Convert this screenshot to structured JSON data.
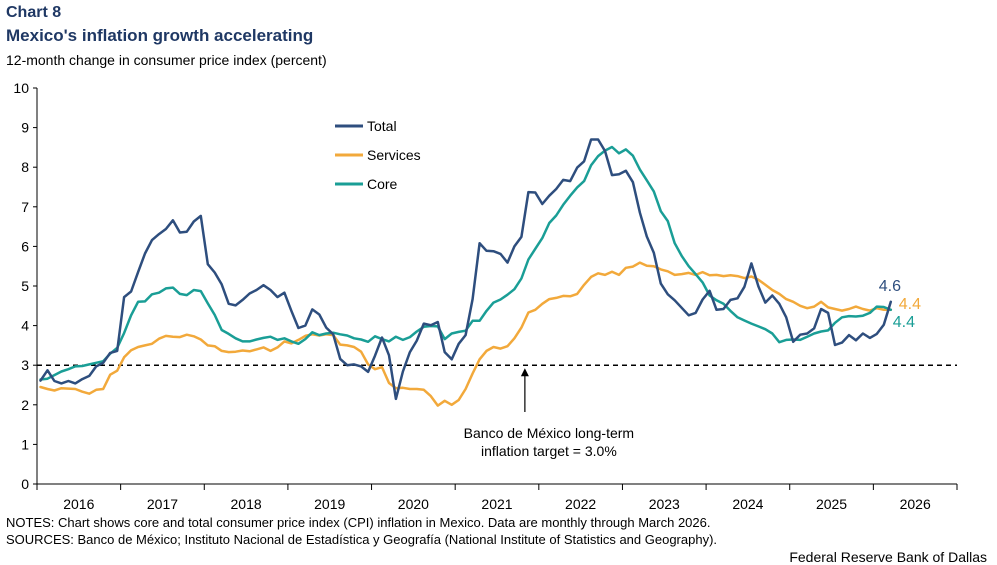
{
  "header": {
    "chart_label": "Chart 8",
    "title": "Mexico's inflation growth accelerating",
    "subtitle": "12-month change in consumer price index (percent)"
  },
  "footer": {
    "notes": "NOTES: Chart shows core and total consumer price index (CPI) inflation in Mexico. Data are monthly through March 2026.",
    "sources": "SOURCES: Banco de México; Instituto Nacional de Estadística y Geografía (National Institute of Statistics and Geography).",
    "credit": "Federal Reserve Bank of Dallas"
  },
  "chart_data": {
    "type": "line",
    "title": "Mexico's inflation growth accelerating",
    "ylabel": "12-month change in consumer price index (percent)",
    "ylim": [
      0,
      10
    ],
    "yticks": [
      0,
      1,
      2,
      3,
      4,
      5,
      6,
      7,
      8,
      9,
      10
    ],
    "xlim": [
      "2016-01",
      "2026-12"
    ],
    "xticks": [
      "2016",
      "2017",
      "2018",
      "2019",
      "2020",
      "2021",
      "2022",
      "2023",
      "2024",
      "2025",
      "2026"
    ],
    "grid": false,
    "legend_position": "top-center",
    "reference_line": {
      "value": 3.0,
      "style": "dashed",
      "annotation": [
        "Banco de México long-term",
        "inflation target = 3.0%"
      ],
      "annotation_x": "2021-11"
    },
    "end_labels": [
      {
        "series": "Total",
        "text": "4.6"
      },
      {
        "series": "Services",
        "text": "4.4"
      },
      {
        "series": "Core",
        "text": "4.4"
      }
    ],
    "start": "2016-01",
    "series": [
      {
        "name": "Total",
        "color": "#2e4e7e",
        "values": [
          2.61,
          2.87,
          2.6,
          2.54,
          2.6,
          2.54,
          2.65,
          2.73,
          2.97,
          3.06,
          3.31,
          3.36,
          4.72,
          4.86,
          5.35,
          5.82,
          6.16,
          6.31,
          6.44,
          6.66,
          6.35,
          6.37,
          6.63,
          6.77,
          5.55,
          5.34,
          5.04,
          4.55,
          4.51,
          4.65,
          4.81,
          4.9,
          5.02,
          4.9,
          4.72,
          4.83,
          4.37,
          3.94,
          4.0,
          4.41,
          4.28,
          3.95,
          3.78,
          3.16,
          3.0,
          3.02,
          2.97,
          2.83,
          3.24,
          3.7,
          3.25,
          2.15,
          2.84,
          3.33,
          3.62,
          4.05,
          4.01,
          4.09,
          3.33,
          3.15,
          3.54,
          3.76,
          4.67,
          6.08,
          5.89,
          5.88,
          5.81,
          5.59,
          6.0,
          6.24,
          7.37,
          7.36,
          7.07,
          7.28,
          7.45,
          7.68,
          7.65,
          7.99,
          8.15,
          8.7,
          8.7,
          8.41,
          7.8,
          7.82,
          7.91,
          7.62,
          6.85,
          6.25,
          5.84,
          5.06,
          4.79,
          4.64,
          4.45,
          4.26,
          4.32,
          4.66,
          4.88,
          4.4,
          4.42,
          4.65,
          4.69,
          4.98,
          5.57,
          4.99,
          4.58,
          4.76,
          4.55,
          4.21,
          3.59,
          3.77,
          3.8,
          3.93,
          4.42,
          4.32,
          3.51,
          3.57,
          3.76,
          3.63,
          3.8,
          3.69,
          3.79,
          4.02,
          4.6
        ]
      },
      {
        "name": "Services",
        "color": "#f2a93b",
        "values": [
          2.45,
          2.4,
          2.36,
          2.42,
          2.41,
          2.4,
          2.33,
          2.28,
          2.38,
          2.4,
          2.76,
          2.86,
          3.2,
          3.38,
          3.46,
          3.5,
          3.54,
          3.67,
          3.74,
          3.72,
          3.71,
          3.77,
          3.73,
          3.65,
          3.5,
          3.48,
          3.36,
          3.33,
          3.34,
          3.37,
          3.35,
          3.4,
          3.45,
          3.36,
          3.45,
          3.6,
          3.55,
          3.64,
          3.74,
          3.78,
          3.75,
          3.78,
          3.76,
          3.52,
          3.5,
          3.46,
          3.34,
          3.02,
          2.9,
          2.95,
          2.55,
          2.42,
          2.43,
          2.4,
          2.4,
          2.38,
          2.22,
          1.98,
          2.1,
          2.0,
          2.12,
          2.4,
          2.79,
          3.15,
          3.36,
          3.46,
          3.42,
          3.48,
          3.68,
          3.95,
          4.33,
          4.4,
          4.55,
          4.67,
          4.7,
          4.75,
          4.74,
          4.8,
          5.03,
          5.23,
          5.32,
          5.28,
          5.36,
          5.28,
          5.46,
          5.49,
          5.59,
          5.51,
          5.5,
          5.42,
          5.37,
          5.28,
          5.3,
          5.33,
          5.28,
          5.35,
          5.27,
          5.28,
          5.25,
          5.27,
          5.25,
          5.2,
          5.24,
          5.16,
          5.03,
          4.9,
          4.8,
          4.67,
          4.6,
          4.5,
          4.44,
          4.48,
          4.6,
          4.46,
          4.42,
          4.38,
          4.42,
          4.48,
          4.42,
          4.38,
          4.44,
          4.4,
          4.4
        ]
      },
      {
        "name": "Core",
        "color": "#1a9e96",
        "values": [
          2.64,
          2.66,
          2.75,
          2.84,
          2.9,
          2.97,
          2.98,
          3.02,
          3.06,
          3.1,
          3.29,
          3.44,
          3.81,
          4.26,
          4.6,
          4.61,
          4.79,
          4.83,
          4.94,
          4.96,
          4.8,
          4.77,
          4.9,
          4.87,
          4.56,
          4.27,
          3.89,
          3.79,
          3.68,
          3.6,
          3.6,
          3.65,
          3.69,
          3.72,
          3.64,
          3.68,
          3.6,
          3.54,
          3.66,
          3.83,
          3.76,
          3.8,
          3.82,
          3.78,
          3.75,
          3.68,
          3.65,
          3.59,
          3.73,
          3.66,
          3.6,
          3.72,
          3.64,
          3.71,
          3.85,
          3.97,
          3.99,
          3.98,
          3.66,
          3.8,
          3.84,
          3.87,
          4.12,
          4.12,
          4.37,
          4.58,
          4.66,
          4.78,
          4.92,
          5.19,
          5.67,
          5.94,
          6.21,
          6.59,
          6.78,
          7.05,
          7.28,
          7.49,
          7.65,
          8.05,
          8.28,
          8.42,
          8.51,
          8.35,
          8.45,
          8.29,
          7.94,
          7.67,
          7.39,
          6.89,
          6.64,
          6.08,
          5.76,
          5.5,
          5.3,
          5.09,
          4.76,
          4.64,
          4.55,
          4.37,
          4.21,
          4.13,
          4.05,
          3.98,
          3.91,
          3.8,
          3.58,
          3.64,
          3.65,
          3.64,
          3.72,
          3.8,
          3.85,
          3.88,
          4.07,
          4.21,
          4.24,
          4.23,
          4.25,
          4.32,
          4.48,
          4.47,
          4.4
        ]
      }
    ]
  }
}
